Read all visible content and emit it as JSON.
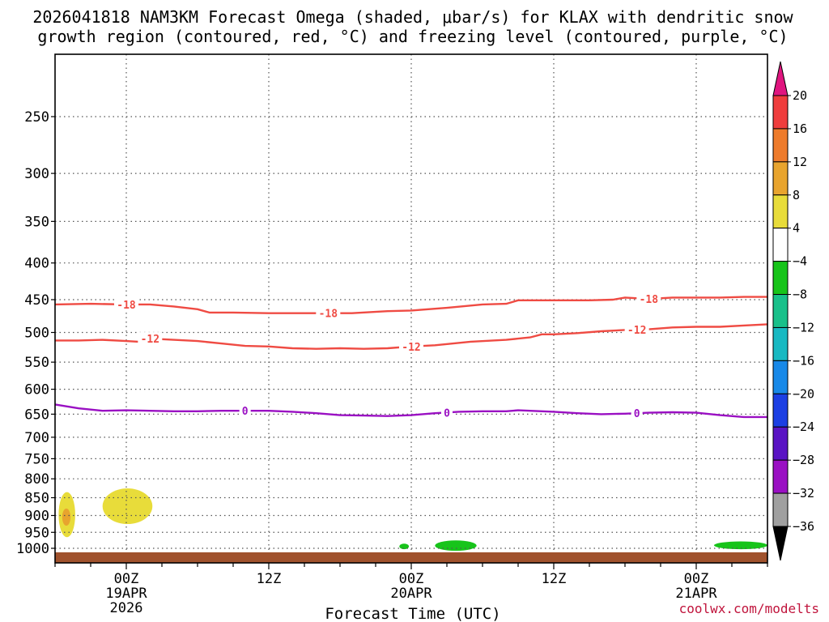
{
  "chart_data": {
    "type": "time-height cross section",
    "title_line1": "2026041818 NAM3KM Forecast Omega (shaded, μbar/s) for KLAX with dendritic snow",
    "title_line2": "growth region (contoured, red, °C) and freezing level (contoured, purple, °C)",
    "xlabel": "Forecast Time (UTC)",
    "credit": "coolwx.com/modelts",
    "x_unit": "hours since 2026-04-18 18Z",
    "xlim": [
      0,
      60
    ],
    "x_ticks": [
      {
        "hour": 6,
        "line1": "00Z",
        "line2": "19APR",
        "line3": "2026"
      },
      {
        "hour": 18,
        "line1": "12Z",
        "line2": "",
        "line3": ""
      },
      {
        "hour": 30,
        "line1": "00Z",
        "line2": "20APR",
        "line3": ""
      },
      {
        "hour": 42,
        "line1": "12Z",
        "line2": "",
        "line3": ""
      },
      {
        "hour": 54,
        "line1": "00Z",
        "line2": "21APR",
        "line3": ""
      }
    ],
    "y_unit": "hPa",
    "ylim": [
      1025,
      200
    ],
    "y_ticks": [
      250,
      300,
      350,
      400,
      450,
      500,
      550,
      600,
      650,
      700,
      750,
      800,
      850,
      900,
      950,
      1000
    ],
    "colorbar": {
      "levels": [
        20,
        16,
        12,
        8,
        4,
        -4,
        -8,
        -12,
        -16,
        -20,
        -24,
        -28,
        -32,
        -36
      ],
      "colors": [
        "#ef3d3d",
        "#ee7b2b",
        "#e8a42e",
        "#e8dc3a",
        "#ffffff",
        "#17c41a",
        "#19c08a",
        "#18b9c2",
        "#1889e8",
        "#1c3fe3",
        "#5a14c4",
        "#9a10c3",
        "#a0a0a0"
      ],
      "top_arrow_color": "#e0157f",
      "bottom_arrow_color": "#000000"
    },
    "contours": [
      {
        "name": "-18C",
        "label": "-18",
        "color": "#ef4b43",
        "points": [
          [
            0,
            457
          ],
          [
            3,
            456
          ],
          [
            6,
            457
          ],
          [
            8,
            457
          ],
          [
            10,
            460
          ],
          [
            12,
            464
          ],
          [
            13,
            469
          ],
          [
            15,
            469
          ],
          [
            18,
            470
          ],
          [
            20,
            470
          ],
          [
            22,
            470
          ],
          [
            25,
            470
          ],
          [
            28,
            467
          ],
          [
            30,
            466
          ],
          [
            33,
            462
          ],
          [
            36,
            457
          ],
          [
            38,
            456
          ],
          [
            39,
            451
          ],
          [
            42,
            451
          ],
          [
            45,
            451
          ],
          [
            47,
            450
          ],
          [
            48,
            447
          ],
          [
            50,
            449
          ],
          [
            52,
            447
          ],
          [
            54,
            447
          ],
          [
            56,
            447
          ],
          [
            58,
            446
          ],
          [
            60,
            446
          ]
        ],
        "label_hours": [
          6,
          23,
          50
        ]
      },
      {
        "name": "-12C",
        "label": "-12",
        "color": "#ef4b43",
        "points": [
          [
            0,
            513
          ],
          [
            2,
            513
          ],
          [
            4,
            512
          ],
          [
            6,
            514
          ],
          [
            7,
            515
          ],
          [
            8,
            510
          ],
          [
            10,
            512
          ],
          [
            12,
            514
          ],
          [
            14,
            518
          ],
          [
            16,
            522
          ],
          [
            18,
            523
          ],
          [
            20,
            526
          ],
          [
            22,
            527
          ],
          [
            24,
            526
          ],
          [
            26,
            527
          ],
          [
            28,
            526
          ],
          [
            30,
            523
          ],
          [
            32,
            521
          ],
          [
            35,
            515
          ],
          [
            38,
            512
          ],
          [
            39,
            510
          ],
          [
            40,
            508
          ],
          [
            41,
            503
          ],
          [
            42,
            503
          ],
          [
            44,
            501
          ],
          [
            46,
            498
          ],
          [
            48,
            496
          ],
          [
            50,
            495
          ],
          [
            52,
            492
          ],
          [
            54,
            491
          ],
          [
            56,
            491
          ],
          [
            58,
            489
          ],
          [
            60,
            487
          ]
        ],
        "label_hours": [
          8,
          30,
          49
        ]
      },
      {
        "name": "0C",
        "label": "0",
        "color": "#9a10c3",
        "points": [
          [
            0,
            630
          ],
          [
            2,
            638
          ],
          [
            4,
            643
          ],
          [
            6,
            642
          ],
          [
            8,
            643
          ],
          [
            10,
            644
          ],
          [
            12,
            644
          ],
          [
            14,
            643
          ],
          [
            16,
            643
          ],
          [
            18,
            643
          ],
          [
            20,
            645
          ],
          [
            22,
            648
          ],
          [
            24,
            652
          ],
          [
            26,
            653
          ],
          [
            28,
            654
          ],
          [
            30,
            652
          ],
          [
            32,
            648
          ],
          [
            34,
            645
          ],
          [
            36,
            644
          ],
          [
            38,
            644
          ],
          [
            39,
            642
          ],
          [
            40,
            643
          ],
          [
            42,
            645
          ],
          [
            44,
            648
          ],
          [
            46,
            650
          ],
          [
            48,
            649
          ],
          [
            50,
            647
          ],
          [
            52,
            646
          ],
          [
            54,
            647
          ],
          [
            56,
            652
          ],
          [
            58,
            656
          ],
          [
            60,
            656
          ]
        ],
        "label_hours": [
          16,
          33,
          49
        ]
      }
    ],
    "shaded_regions": [
      {
        "omega": "4 to 8",
        "color": "#e8dc3a",
        "hour_range": [
          0.3,
          1.7
        ],
        "pressure_range": [
          835,
          965
        ]
      },
      {
        "omega": "8 to 12",
        "color": "#e8a42e",
        "hour_range": [
          0.6,
          1.3
        ],
        "pressure_range": [
          880,
          930
        ]
      },
      {
        "omega": "4 to 8",
        "color": "#e8dc3a",
        "hour_range": [
          4.0,
          8.2
        ],
        "pressure_range": [
          825,
          925
        ]
      },
      {
        "omega": "-4 to -8",
        "color": "#17c41a",
        "hour_range": [
          29.0,
          29.8
        ],
        "pressure_range": [
          985,
          1003
        ]
      },
      {
        "omega": "-4 to -8",
        "color": "#17c41a",
        "hour_range": [
          32.0,
          35.5
        ],
        "pressure_range": [
          975,
          1008
        ]
      },
      {
        "omega": "-4 to -8",
        "color": "#17c41a",
        "hour_range": [
          55.5,
          60.0
        ],
        "pressure_range": [
          978,
          1003
        ]
      }
    ],
    "terrain_color": "#a0522d"
  }
}
